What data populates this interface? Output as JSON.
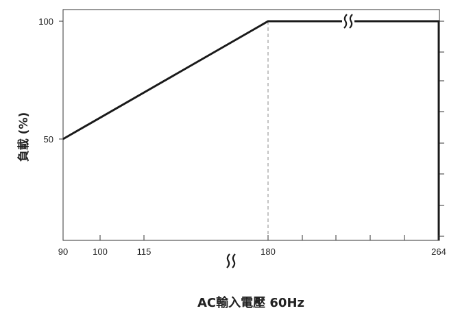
{
  "chart_data": {
    "type": "line",
    "xlabel": "AC輸入電壓 60Hz",
    "ylabel": "負載 (%)",
    "x_ticks": [
      {
        "value": 90,
        "label": "90"
      },
      {
        "value": 100,
        "label": "100"
      },
      {
        "value": 115,
        "label": "115"
      },
      {
        "value": 180,
        "label": "180"
      },
      {
        "value": 264,
        "label": "264"
      }
    ],
    "y_ticks": [
      {
        "value": 50,
        "label": "50"
      },
      {
        "value": 100,
        "label": "100"
      }
    ],
    "series": [
      {
        "points": [
          {
            "x": 90,
            "y": 50
          },
          {
            "x": 180,
            "y": 100
          },
          {
            "x": 264,
            "y": 100
          },
          {
            "x": 264,
            "y": 0
          }
        ]
      }
    ],
    "reference_line": {
      "x": 180,
      "style": "dashed"
    },
    "axis_breaks": [
      "x-axis between 115 and 180",
      "top line between 180 and 264"
    ],
    "ylim": [
      0,
      105
    ],
    "grid": false,
    "colors": {
      "line": "#1a1a1a",
      "axis": "#333333",
      "dashed": "#888888"
    }
  }
}
